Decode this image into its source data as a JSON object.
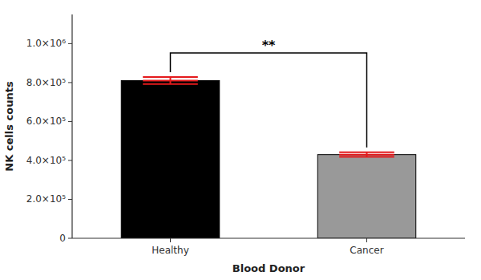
{
  "chart_data": {
    "type": "bar",
    "categories": [
      "Healthy",
      "Cancer"
    ],
    "values": [
      810000,
      430000
    ],
    "errors": [
      18000,
      12000
    ],
    "colors": [
      "#000000",
      "#999999"
    ],
    "xlabel": "Blood Donor",
    "ylabel": "NK cells counts",
    "ylim": [
      0,
      1150000
    ],
    "yticks": [
      0,
      {
        "value": 200000,
        "label": "2.0×10⁵"
      },
      {
        "value": 400000,
        "label": "4.0×10⁵"
      },
      {
        "value": 600000,
        "label": "6.0×10⁵"
      },
      {
        "value": 800000,
        "label": "8.0×10⁵"
      },
      {
        "value": 1000000,
        "label": "1.0×10⁶"
      }
    ],
    "annotation": "**",
    "grid": false
  }
}
